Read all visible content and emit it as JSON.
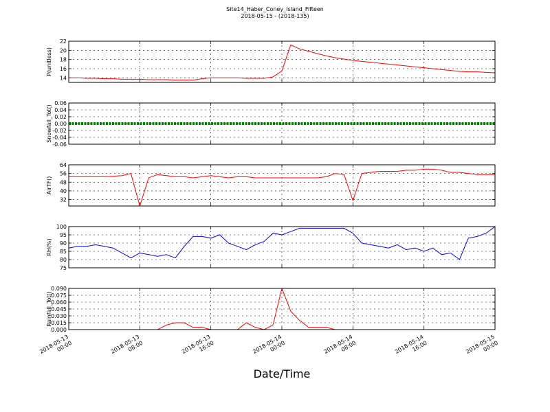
{
  "chart_data": [
    {
      "type": "line",
      "title": "Site14_Haber_Coney_Island_Fifteen",
      "subtitle": "2018-05-15 - (2018-135)",
      "ylabel": "P(unitless)",
      "color": "#ff0000",
      "x": [
        "2018-05-13 00:00",
        "2018-05-13 01:00",
        "2018-05-13 02:00",
        "2018-05-13 03:00",
        "2018-05-13 04:00",
        "2018-05-13 05:00",
        "2018-05-13 06:00",
        "2018-05-13 07:00",
        "2018-05-13 08:00",
        "2018-05-13 09:00",
        "2018-05-13 10:00",
        "2018-05-13 11:00",
        "2018-05-13 12:00",
        "2018-05-13 13:00",
        "2018-05-13 14:00",
        "2018-05-13 15:00",
        "2018-05-13 16:00",
        "2018-05-13 17:00",
        "2018-05-13 18:00",
        "2018-05-13 19:00",
        "2018-05-13 20:00",
        "2018-05-13 21:00",
        "2018-05-13 22:00",
        "2018-05-13 23:00",
        "2018-05-14 00:00",
        "2018-05-14 01:00",
        "2018-05-14 02:00",
        "2018-05-14 03:00",
        "2018-05-14 04:00",
        "2018-05-14 05:00",
        "2018-05-14 06:00",
        "2018-05-14 07:00",
        "2018-05-14 08:00",
        "2018-05-14 09:00",
        "2018-05-14 10:00",
        "2018-05-14 11:00",
        "2018-05-14 12:00",
        "2018-05-14 13:00",
        "2018-05-14 14:00",
        "2018-05-14 15:00",
        "2018-05-14 16:00",
        "2018-05-14 17:00",
        "2018-05-14 18:00",
        "2018-05-14 19:00",
        "2018-05-14 20:00",
        "2018-05-14 21:00",
        "2018-05-14 22:00",
        "2018-05-14 23:00",
        "2018-05-15 00:00"
      ],
      "values": [
        14.0,
        14.0,
        13.9,
        13.9,
        13.8,
        13.8,
        13.7,
        13.7,
        13.7,
        13.6,
        13.6,
        13.6,
        13.5,
        13.5,
        13.5,
        13.8,
        14.0,
        14.0,
        14.0,
        14.0,
        13.9,
        13.9,
        13.9,
        14.2,
        15.5,
        21.2,
        20.3,
        19.8,
        19.3,
        18.8,
        18.4,
        18.1,
        17.8,
        17.6,
        17.4,
        17.2,
        17.0,
        16.8,
        16.6,
        16.4,
        16.2,
        16.0,
        15.8,
        15.6,
        15.4,
        15.3,
        15.3,
        15.2,
        15.1
      ],
      "xlim": [
        "2018-05-13 00:00",
        "2018-05-15 00:00"
      ],
      "xticks": [
        "2018-05-13 00:00",
        "2018-05-13 08:00",
        "2018-05-13 16:00",
        "2018-05-14 00:00",
        "2018-05-14 08:00",
        "2018-05-14 16:00",
        "2018-05-15 00:00"
      ],
      "ylim": [
        13,
        22
      ],
      "yticks": [
        14,
        16,
        18,
        20,
        22
      ],
      "grid": true
    },
    {
      "type": "line",
      "ylabel": "Snowfall_Tot()",
      "color": "#008000",
      "marker": "o",
      "x": [
        "2018-05-13 00:00",
        "2018-05-13 01:00",
        "2018-05-13 02:00",
        "2018-05-13 03:00",
        "2018-05-13 04:00",
        "2018-05-13 05:00",
        "2018-05-13 06:00",
        "2018-05-13 07:00",
        "2018-05-13 08:00",
        "2018-05-13 09:00",
        "2018-05-13 10:00",
        "2018-05-13 11:00",
        "2018-05-13 12:00",
        "2018-05-13 13:00",
        "2018-05-13 14:00",
        "2018-05-13 15:00",
        "2018-05-13 16:00",
        "2018-05-13 17:00",
        "2018-05-13 18:00",
        "2018-05-13 19:00",
        "2018-05-13 20:00",
        "2018-05-13 21:00",
        "2018-05-13 22:00",
        "2018-05-13 23:00",
        "2018-05-14 00:00",
        "2018-05-14 01:00",
        "2018-05-14 02:00",
        "2018-05-14 03:00",
        "2018-05-14 04:00",
        "2018-05-14 05:00",
        "2018-05-14 06:00",
        "2018-05-14 07:00",
        "2018-05-14 08:00",
        "2018-05-14 09:00",
        "2018-05-14 10:00",
        "2018-05-14 11:00",
        "2018-05-14 12:00",
        "2018-05-14 13:00",
        "2018-05-14 14:00",
        "2018-05-14 15:00",
        "2018-05-14 16:00",
        "2018-05-14 17:00",
        "2018-05-14 18:00",
        "2018-05-14 19:00",
        "2018-05-14 20:00",
        "2018-05-14 21:00",
        "2018-05-14 22:00",
        "2018-05-14 23:00",
        "2018-05-15 00:00"
      ],
      "values": [
        0,
        0,
        0,
        0,
        0,
        0,
        0,
        0,
        0,
        0,
        0,
        0,
        0,
        0,
        0,
        0,
        0,
        0,
        0,
        0,
        0,
        0,
        0,
        0,
        0,
        0,
        0,
        0,
        0,
        0,
        0,
        0,
        0,
        0,
        0,
        0,
        0,
        0,
        0,
        0,
        0,
        0,
        0,
        0,
        0,
        0,
        0,
        0,
        0
      ],
      "xlim": [
        "2018-05-13 00:00",
        "2018-05-15 00:00"
      ],
      "xticks": [
        "2018-05-13 00:00",
        "2018-05-13 08:00",
        "2018-05-13 16:00",
        "2018-05-14 00:00",
        "2018-05-14 08:00",
        "2018-05-14 16:00",
        "2018-05-15 00:00"
      ],
      "ylim": [
        -0.06,
        0.06
      ],
      "yticks": [
        -0.06,
        -0.04,
        -0.02,
        {
          "value": 0,
          "label": "0.00"
        },
        0.02,
        0.04,
        0.06
      ],
      "grid": true
    },
    {
      "type": "line",
      "ylabel": "AirTF()",
      "color": "#ff0000",
      "x": [
        "2018-05-13 00:00",
        "2018-05-13 01:00",
        "2018-05-13 02:00",
        "2018-05-13 03:00",
        "2018-05-13 04:00",
        "2018-05-13 05:00",
        "2018-05-13 06:00",
        "2018-05-13 07:00",
        "2018-05-13 08:00",
        "2018-05-13 09:00",
        "2018-05-13 10:00",
        "2018-05-13 11:00",
        "2018-05-13 12:00",
        "2018-05-13 13:00",
        "2018-05-13 14:00",
        "2018-05-13 15:00",
        "2018-05-13 16:00",
        "2018-05-13 17:00",
        "2018-05-13 18:00",
        "2018-05-13 19:00",
        "2018-05-13 20:00",
        "2018-05-13 21:00",
        "2018-05-13 22:00",
        "2018-05-13 23:00",
        "2018-05-14 00:00",
        "2018-05-14 01:00",
        "2018-05-14 02:00",
        "2018-05-14 03:00",
        "2018-05-14 04:00",
        "2018-05-14 05:00",
        "2018-05-14 06:00",
        "2018-05-14 07:00",
        "2018-05-14 08:00",
        "2018-05-14 09:00",
        "2018-05-14 10:00",
        "2018-05-14 11:00",
        "2018-05-14 12:00",
        "2018-05-14 13:00",
        "2018-05-14 14:00",
        "2018-05-14 15:00",
        "2018-05-14 16:00",
        "2018-05-14 17:00",
        "2018-05-14 18:00",
        "2018-05-14 19:00",
        "2018-05-14 20:00",
        "2018-05-14 21:00",
        "2018-05-14 22:00",
        "2018-05-14 23:00",
        "2018-05-15 00:00"
      ],
      "values": [
        53,
        53,
        53,
        53,
        53,
        53.5,
        54,
        56,
        26,
        52,
        55,
        54,
        53,
        53,
        52,
        53,
        54,
        53,
        52,
        53,
        53,
        52,
        52,
        52,
        52,
        52,
        52,
        52,
        52,
        53,
        56,
        55,
        31,
        56,
        57,
        58,
        58,
        58,
        59,
        59,
        60,
        60,
        59,
        57,
        57,
        56,
        55,
        55,
        55
      ],
      "xlim": [
        "2018-05-13 00:00",
        "2018-05-15 00:00"
      ],
      "xticks": [
        "2018-05-13 00:00",
        "2018-05-13 08:00",
        "2018-05-13 16:00",
        "2018-05-14 00:00",
        "2018-05-14 08:00",
        "2018-05-14 16:00",
        "2018-05-15 00:00"
      ],
      "ylim": [
        26,
        64
      ],
      "yticks": [
        32,
        40,
        48,
        56,
        64
      ],
      "grid": true
    },
    {
      "type": "line",
      "ylabel": "RH(%)",
      "color": "#0000ff",
      "x": [
        "2018-05-13 00:00",
        "2018-05-13 01:00",
        "2018-05-13 02:00",
        "2018-05-13 03:00",
        "2018-05-13 04:00",
        "2018-05-13 05:00",
        "2018-05-13 06:00",
        "2018-05-13 07:00",
        "2018-05-13 08:00",
        "2018-05-13 09:00",
        "2018-05-13 10:00",
        "2018-05-13 11:00",
        "2018-05-13 12:00",
        "2018-05-13 13:00",
        "2018-05-13 14:00",
        "2018-05-13 15:00",
        "2018-05-13 16:00",
        "2018-05-13 17:00",
        "2018-05-13 18:00",
        "2018-05-13 19:00",
        "2018-05-13 20:00",
        "2018-05-13 21:00",
        "2018-05-13 22:00",
        "2018-05-13 23:00",
        "2018-05-14 00:00",
        "2018-05-14 01:00",
        "2018-05-14 02:00",
        "2018-05-14 03:00",
        "2018-05-14 04:00",
        "2018-05-14 05:00",
        "2018-05-14 06:00",
        "2018-05-14 07:00",
        "2018-05-14 08:00",
        "2018-05-14 09:00",
        "2018-05-14 10:00",
        "2018-05-14 11:00",
        "2018-05-14 12:00",
        "2018-05-14 13:00",
        "2018-05-14 14:00",
        "2018-05-14 15:00",
        "2018-05-14 16:00",
        "2018-05-14 17:00",
        "2018-05-14 18:00",
        "2018-05-14 19:00",
        "2018-05-14 20:00",
        "2018-05-14 21:00",
        "2018-05-14 22:00",
        "2018-05-14 23:00",
        "2018-05-15 00:00"
      ],
      "values": [
        87,
        88,
        88,
        89,
        88,
        87,
        84,
        81,
        84,
        83,
        82,
        83,
        81,
        88,
        94,
        94,
        93,
        95,
        90,
        88,
        86,
        89,
        91,
        96,
        95,
        97,
        99,
        99,
        99,
        99,
        99,
        99,
        96,
        90,
        89,
        88,
        87,
        89,
        86,
        87,
        85,
        87,
        83,
        84,
        80,
        93,
        94,
        96,
        100
      ],
      "xlim": [
        "2018-05-13 00:00",
        "2018-05-15 00:00"
      ],
      "xticks": [
        "2018-05-13 00:00",
        "2018-05-13 08:00",
        "2018-05-13 16:00",
        "2018-05-14 00:00",
        "2018-05-14 08:00",
        "2018-05-14 16:00",
        "2018-05-15 00:00"
      ],
      "ylim": [
        75,
        100
      ],
      "yticks": [
        75,
        80,
        85,
        90,
        95,
        100
      ],
      "grid": true
    },
    {
      "type": "line",
      "ylabel": "Rainfall_Tot()",
      "xlabel": "Date/Time",
      "color": "#ff0000",
      "x": [
        "2018-05-13 00:00",
        "2018-05-13 01:00",
        "2018-05-13 02:00",
        "2018-05-13 03:00",
        "2018-05-13 04:00",
        "2018-05-13 05:00",
        "2018-05-13 06:00",
        "2018-05-13 07:00",
        "2018-05-13 08:00",
        "2018-05-13 09:00",
        "2018-05-13 10:00",
        "2018-05-13 11:00",
        "2018-05-13 12:00",
        "2018-05-13 13:00",
        "2018-05-13 14:00",
        "2018-05-13 15:00",
        "2018-05-13 16:00",
        "2018-05-13 17:00",
        "2018-05-13 18:00",
        "2018-05-13 19:00",
        "2018-05-13 20:00",
        "2018-05-13 21:00",
        "2018-05-13 22:00",
        "2018-05-13 23:00",
        "2018-05-14 00:00",
        "2018-05-14 01:00",
        "2018-05-14 02:00",
        "2018-05-14 03:00",
        "2018-05-14 04:00",
        "2018-05-14 05:00",
        "2018-05-14 06:00",
        "2018-05-14 07:00",
        "2018-05-14 08:00",
        "2018-05-14 09:00",
        "2018-05-14 10:00",
        "2018-05-14 11:00",
        "2018-05-14 12:00",
        "2018-05-14 13:00",
        "2018-05-14 14:00",
        "2018-05-14 15:00",
        "2018-05-14 16:00",
        "2018-05-14 17:00",
        "2018-05-14 18:00",
        "2018-05-14 19:00",
        "2018-05-14 20:00",
        "2018-05-14 21:00",
        "2018-05-14 22:00",
        "2018-05-14 23:00",
        "2018-05-15 00:00"
      ],
      "values": [
        0,
        0,
        0,
        0,
        0,
        0,
        0,
        0,
        0,
        0,
        0,
        0.01,
        0.015,
        0.015,
        0.005,
        0.005,
        0,
        0,
        0,
        0,
        0.015,
        0.005,
        0,
        0.01,
        0.09,
        0.04,
        0.02,
        0.005,
        0.005,
        0.005,
        0,
        0,
        0,
        0,
        0,
        0,
        0,
        0,
        0,
        0,
        0,
        0,
        0,
        0,
        0,
        0,
        0,
        0,
        0
      ],
      "xlim": [
        "2018-05-13 00:00",
        "2018-05-15 00:00"
      ],
      "xticks": [
        {
          "value": "2018-05-13 00:00",
          "label": "2018-05-13\n00:00"
        },
        {
          "value": "2018-05-13 08:00",
          "label": "2018-05-13\n08:00"
        },
        {
          "value": "2018-05-13 16:00",
          "label": "2018-05-13\n16:00"
        },
        {
          "value": "2018-05-14 00:00",
          "label": "2018-05-14\n00:00"
        },
        {
          "value": "2018-05-14 08:00",
          "label": "2018-05-14\n08:00"
        },
        {
          "value": "2018-05-14 16:00",
          "label": "2018-05-14\n16:00"
        },
        {
          "value": "2018-05-15 00:00",
          "label": "2018-05-15\n00:00"
        }
      ],
      "ylim": [
        0,
        0.09
      ],
      "yticks": [
        {
          "value": 0,
          "label": "0.000"
        },
        {
          "value": 0.015,
          "label": "0.015"
        },
        {
          "value": 0.03,
          "label": "0.030"
        },
        {
          "value": 0.045,
          "label": "0.045"
        },
        {
          "value": 0.06,
          "label": "0.060"
        },
        {
          "value": 0.075,
          "label": "0.075"
        },
        {
          "value": 0.09,
          "label": "0.090"
        }
      ],
      "grid": true
    }
  ]
}
